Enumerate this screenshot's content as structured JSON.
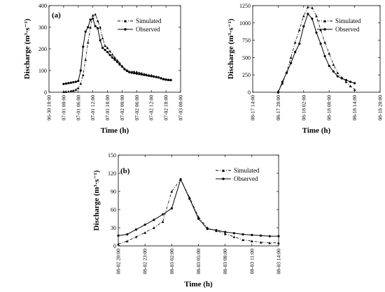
{
  "chart_data": [
    {
      "type": "line",
      "panel_label": "(a)",
      "xlabel": "Time (h)",
      "ylabel": "Discharge (m³·s⁻¹)",
      "ylim": [
        0,
        400
      ],
      "yticks": [
        0,
        100,
        200,
        300,
        400
      ],
      "x_start_hour": 0,
      "x_end_hour": 54,
      "xticks": [
        {
          "h": 0,
          "label": "06-30 18:00"
        },
        {
          "h": 6,
          "label": "07-01 00:00"
        },
        {
          "h": 12,
          "label": "07-01 06:00"
        },
        {
          "h": 18,
          "label": "07-01 12:00"
        },
        {
          "h": 24,
          "label": "07-01 18:00"
        },
        {
          "h": 30,
          "label": "07-02 00:00"
        },
        {
          "h": 36,
          "label": "07-02 06:00"
        },
        {
          "h": 42,
          "label": "07-02 12:00"
        },
        {
          "h": 48,
          "label": "07-02 18:00"
        },
        {
          "h": 54,
          "label": "07-03 00:00"
        }
      ],
      "legend_position": "top-right",
      "series": [
        {
          "name": "Simulated",
          "style": "dash-dot",
          "x": [
            6,
            7,
            8,
            9,
            10,
            11,
            12,
            13,
            14,
            15,
            16,
            17,
            18,
            19,
            20,
            21,
            22,
            23,
            24,
            25,
            26,
            27,
            28,
            29,
            30,
            31,
            32,
            33,
            34,
            35,
            36,
            37,
            38,
            39,
            40,
            41,
            42,
            43,
            44,
            45,
            46,
            47,
            48,
            49,
            50
          ],
          "y": [
            2,
            3,
            4,
            6,
            8,
            12,
            20,
            40,
            80,
            150,
            230,
            300,
            355,
            360,
            330,
            300,
            250,
            215,
            205,
            190,
            175,
            160,
            148,
            135,
            122,
            110,
            102,
            96,
            95,
            95,
            94,
            90,
            88,
            85,
            82,
            80,
            78,
            75,
            72,
            70,
            66,
            62,
            60,
            58,
            57
          ]
        },
        {
          "name": "Observed",
          "style": "solid",
          "x": [
            6,
            7,
            8,
            9,
            10,
            11,
            12,
            13,
            14,
            15,
            16,
            17,
            18,
            19,
            20,
            21,
            22,
            23,
            24,
            25,
            26,
            27,
            28,
            29,
            30,
            31,
            32,
            33,
            34,
            35,
            36,
            37,
            38,
            39,
            40,
            41,
            42,
            43,
            44,
            45,
            46,
            47,
            48,
            49,
            50
          ],
          "y": [
            38,
            40,
            42,
            44,
            46,
            48,
            52,
            100,
            210,
            280,
            300,
            335,
            340,
            305,
            295,
            240,
            205,
            195,
            185,
            172,
            160,
            150,
            140,
            128,
            118,
            106,
            98,
            92,
            90,
            88,
            86,
            84,
            82,
            80,
            78,
            76,
            74,
            72,
            70,
            68,
            64,
            60,
            58,
            57,
            56
          ]
        }
      ]
    },
    {
      "type": "line",
      "panel_label": "",
      "xlabel": "Time (h)",
      "ylabel": "Discharge (m³·s⁻¹)",
      "ylim": [
        0,
        1250
      ],
      "yticks": [
        0,
        250,
        500,
        750,
        1000,
        1250
      ],
      "x_start_hour": 0,
      "x_end_hour": 30,
      "xticks": [
        {
          "h": 0,
          "label": "08-17 14:00"
        },
        {
          "h": 6,
          "label": "08-17 20:00"
        },
        {
          "h": 12,
          "label": "08-18 02:00"
        },
        {
          "h": 18,
          "label": "08-18 08:00"
        },
        {
          "h": 24,
          "label": "08-18 14:00"
        },
        {
          "h": 30,
          "label": "08-18 20:00"
        }
      ],
      "legend_position": "top-right",
      "series": [
        {
          "name": "Simulated",
          "style": "dash-dot",
          "x": [
            6,
            7,
            8,
            9,
            10,
            11,
            12,
            13,
            14,
            15,
            16,
            17,
            18,
            19,
            20,
            21,
            22,
            23,
            24
          ],
          "y": [
            0,
            130,
            290,
            500,
            720,
            900,
            1100,
            1230,
            1220,
            1100,
            900,
            720,
            560,
            400,
            280,
            210,
            150,
            90,
            40
          ]
        },
        {
          "name": "Observed",
          "style": "solid",
          "x": [
            6,
            7,
            8,
            9,
            10,
            11,
            12,
            13,
            14,
            15,
            16,
            17,
            18,
            19,
            20,
            21,
            22,
            23,
            24
          ],
          "y": [
            0,
            150,
            280,
            420,
            580,
            700,
            950,
            1130,
            1060,
            860,
            700,
            520,
            380,
            300,
            230,
            200,
            175,
            150,
            130
          ]
        }
      ]
    },
    {
      "type": "line",
      "panel_label": "(b)",
      "xlabel": "Time (h)",
      "ylabel": "Discharge (m³·s⁻¹)",
      "ylim": [
        0,
        150
      ],
      "yticks": [
        0,
        30,
        60,
        90,
        120,
        150
      ],
      "x_start_hour": 0,
      "x_end_hour": 18,
      "xticks": [
        {
          "h": 0,
          "label": "08-02 20:00"
        },
        {
          "h": 3,
          "label": "08-02 23:00"
        },
        {
          "h": 6,
          "label": "08-03 02:00"
        },
        {
          "h": 9,
          "label": "08-03 05:00"
        },
        {
          "h": 12,
          "label": "08-03 08:00"
        },
        {
          "h": 15,
          "label": "08-03 11:00"
        },
        {
          "h": 18,
          "label": "08-03 14:00"
        }
      ],
      "legend_position": "top-right",
      "series": [
        {
          "name": "Simulated",
          "style": "dash-dot",
          "x": [
            0,
            1,
            2,
            3,
            4,
            5,
            6,
            7,
            8,
            9,
            10,
            11,
            12,
            13,
            14,
            15,
            16,
            17,
            18
          ],
          "y": [
            3,
            8,
            15,
            22,
            30,
            40,
            90,
            110,
            80,
            48,
            30,
            25,
            20,
            15,
            10,
            8,
            6,
            5,
            5
          ]
        },
        {
          "name": "Observed",
          "style": "solid",
          "x": [
            0,
            1,
            2,
            3,
            4,
            5,
            6,
            7,
            8,
            9,
            10,
            11,
            12,
            13,
            14,
            15,
            16,
            17,
            18
          ],
          "y": [
            17,
            19,
            27,
            35,
            43,
            52,
            62,
            110,
            78,
            45,
            28,
            26,
            23,
            21,
            19,
            18,
            17,
            16,
            16
          ]
        }
      ]
    }
  ]
}
